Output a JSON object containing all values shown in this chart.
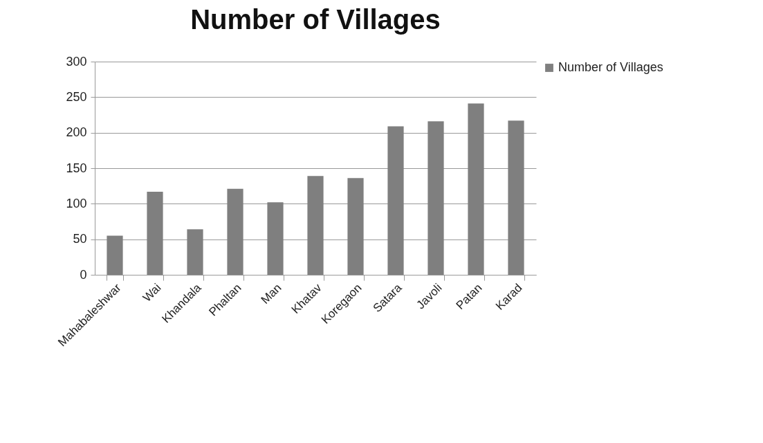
{
  "chart_data": {
    "type": "bar",
    "title": "Number of Villages",
    "categories": [
      "Mahabaleshwar",
      "Wai",
      "Khandala",
      "Phaltan",
      "Man",
      "Khatav",
      "Koregaon",
      "Satara",
      "Javoli",
      "Patan",
      "Karad"
    ],
    "series": [
      {
        "name": "Number of Villages",
        "color": "#7f7f7f",
        "values": [
          55,
          117,
          64,
          121,
          102,
          139,
          136,
          209,
          216,
          241,
          217
        ]
      }
    ],
    "ylim": [
      0,
      300
    ],
    "yticks": [
      0,
      50,
      100,
      150,
      200,
      250,
      300
    ],
    "grid": "y",
    "legend": "right"
  }
}
